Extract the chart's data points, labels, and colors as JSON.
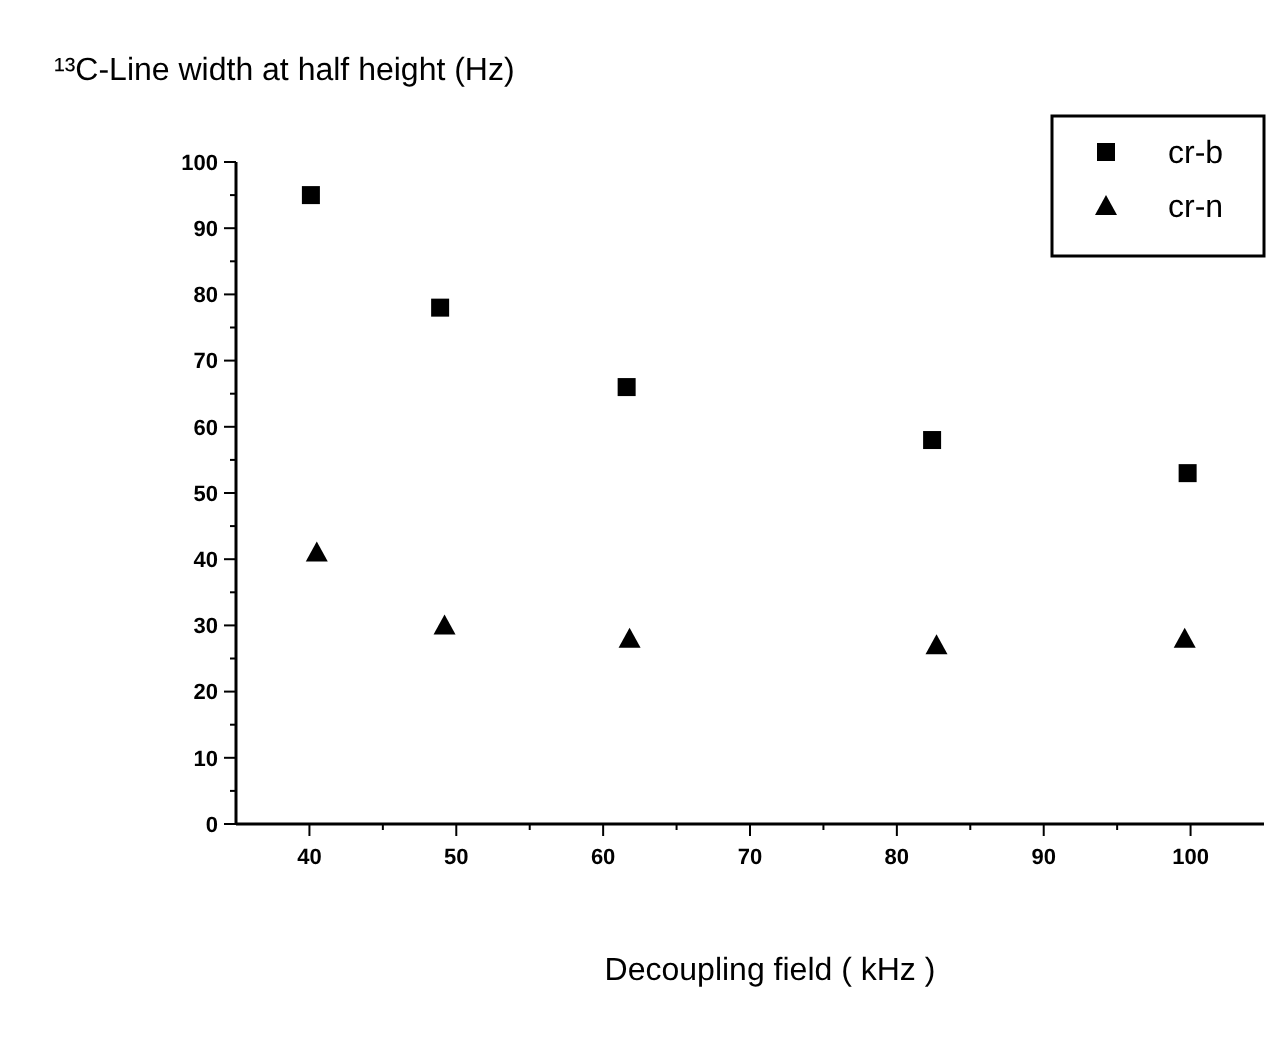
{
  "chart_data": {
    "type": "scatter",
    "ylabel": "¹³C-Line width at half height (Hz)",
    "xlabel": "Decoupling field  ( kHz )",
    "x": [
      40.1,
      48.9,
      61.6,
      82.4,
      99.8
    ],
    "series": [
      {
        "name": "cr-b",
        "color": "#000000",
        "marker": "square",
        "values": [
          95,
          78,
          66,
          58,
          53
        ]
      },
      {
        "name": "cr-n",
        "color": "#000000",
        "marker": "triangle",
        "x": [
          40.5,
          49.2,
          61.8,
          82.7,
          99.6
        ],
        "values": [
          41,
          30,
          28,
          27,
          28
        ]
      }
    ],
    "xlim": [
      35,
      105
    ],
    "ylim": [
      0,
      100
    ],
    "xticks": [
      40,
      {
        "value": 45,
        "label": null
      },
      50,
      {
        "value": 55,
        "label": null
      },
      60,
      {
        "value": 65,
        "label": null
      },
      70,
      {
        "value": 75,
        "label": null
      },
      80,
      {
        "value": 85,
        "label": null
      },
      90,
      {
        "value": 95,
        "label": null
      },
      100
    ],
    "yticks": [
      0,
      {
        "value": 5,
        "label": null
      },
      10,
      {
        "value": 15,
        "label": null
      },
      20,
      {
        "value": 25,
        "label": null
      },
      30,
      {
        "value": 35,
        "label": null
      },
      40,
      {
        "value": 45,
        "label": null
      },
      50,
      {
        "value": 55,
        "label": null
      },
      60,
      {
        "value": 65,
        "label": null
      },
      70,
      {
        "value": 75,
        "label": null
      },
      80,
      {
        "value": 85,
        "label": null
      },
      90,
      {
        "value": 95,
        "label": null
      },
      100
    ],
    "grid": false,
    "legend": "top right"
  }
}
